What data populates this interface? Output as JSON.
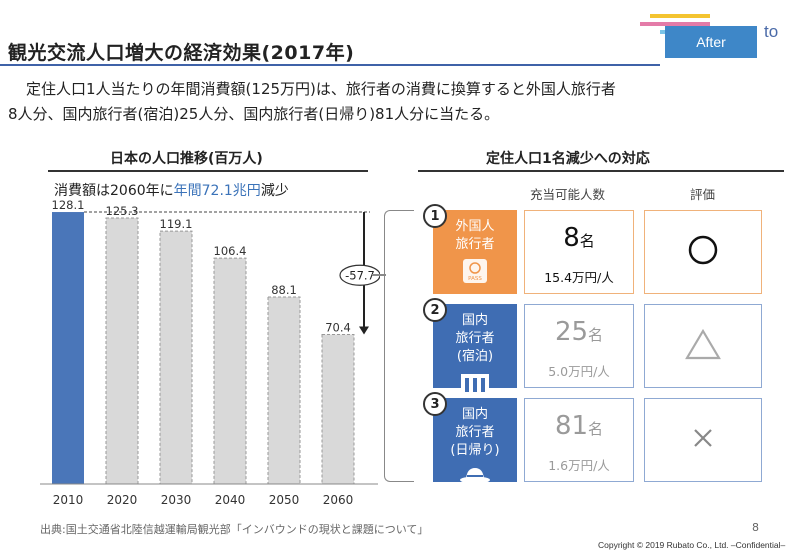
{
  "brand": {
    "badge": "After",
    "logo_text": "to"
  },
  "title": "観光交流人口増大の経済効果(2017年)",
  "intro": {
    "line1": "定住人口1人当たりの年間消費額(125万円)は、旅行者の消費に換算すると外国人旅行者",
    "line2": "8人分、国内旅行者(宿泊)25人分、国内旅行者(日帰り)81人分に当たる。"
  },
  "left_heading": "日本の人口推移(百万人)",
  "right_heading": "定住人口1名減少への対応",
  "chart_note": {
    "pre": "消費額は2060年に",
    "highlight": "年間72.1兆円",
    "post": "減少"
  },
  "chart_data": {
    "type": "bar",
    "categories": [
      "2010",
      "2020",
      "2030",
      "2040",
      "2050",
      "2060"
    ],
    "values": [
      128.1,
      125.3,
      119.1,
      106.4,
      88.1,
      70.4
    ],
    "value_labels": [
      "128.1",
      "125.3",
      "119.1",
      "106.4",
      "88.1",
      "70.4"
    ],
    "ylim": [
      0,
      130
    ],
    "difference_label": "-57.7",
    "colors": {
      "actual": "#4a76b9",
      "projection": "#d9d9d9",
      "projection_border": "#999999"
    }
  },
  "columns": {
    "count": "充当可能人数",
    "evaluation": "評価"
  },
  "rows": [
    {
      "number": "1",
      "label": [
        "外国人",
        "旅行者"
      ],
      "icon": "passport-icon",
      "icon_text": "PASS",
      "count": "8",
      "count_unit": "名",
      "spend": "15.4万円/人",
      "evaluation": "○",
      "label_color": "#f0954a",
      "border_color": "#f0b27a",
      "text_color": "#111111"
    },
    {
      "number": "2",
      "label": [
        "国内",
        "旅行者",
        "(宿泊)"
      ],
      "icon": "hotel-building-icon",
      "count": "25",
      "count_unit": "名",
      "spend": "5.0万円/人",
      "evaluation": "△",
      "label_color": "#3f6db3",
      "border_color": "#8fa9d3",
      "text_color": "#9a9a9a"
    },
    {
      "number": "3",
      "label": [
        "国内",
        "旅行者",
        "(日帰り)"
      ],
      "icon": "hat-icon",
      "count": "81",
      "count_unit": "名",
      "spend": "1.6万円/人",
      "evaluation": "×",
      "label_color": "#3f6db3",
      "border_color": "#8fa9d3",
      "text_color": "#9a9a9a"
    }
  ],
  "footer": {
    "source": "出典:国土交通省北陸信越運輸局観光部「インバウンドの現状と課題について」",
    "page": "8",
    "copyright": "Copyright © 2019 Rubato Co., Ltd. –Confidential–"
  }
}
